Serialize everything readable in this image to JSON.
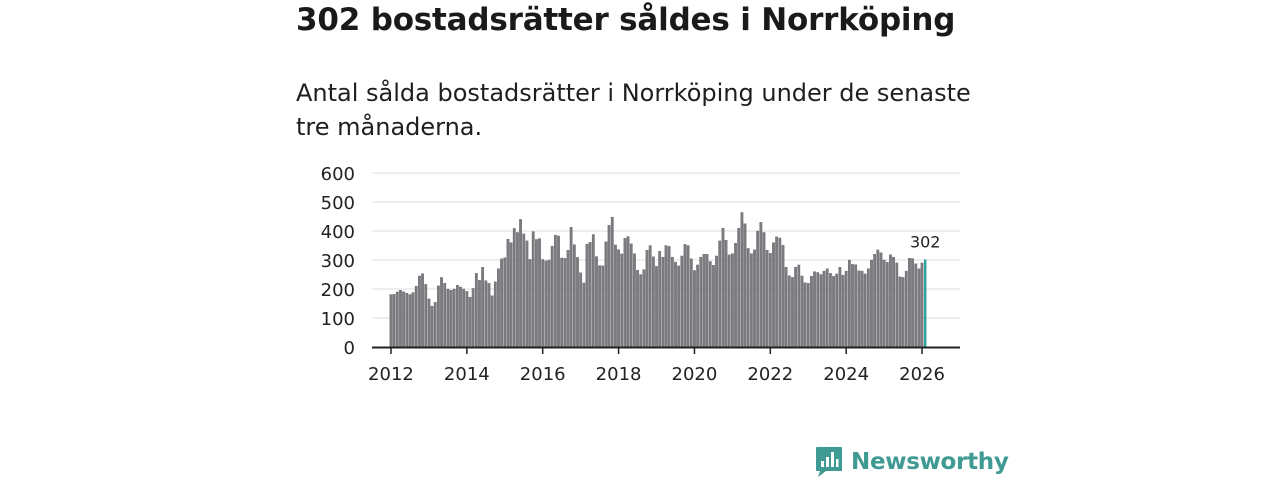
{
  "header": {
    "title": "302 bostadsrätter såldes i Norrköping",
    "subtitle": "Antal sålda bostadsrätter i Norrköping under de senaste tre månaderna."
  },
  "colors": {
    "bar": "#7b7b80",
    "bar_stroke": "#5b5b60",
    "highlight": "#27a39c",
    "grid": "#dddddd",
    "axis": "#222222",
    "brand": "#3e9a92"
  },
  "brand": {
    "name": "Newsworthy",
    "icon": "bar-chart-logo-icon"
  },
  "chart_data": {
    "type": "bar",
    "title": "302 bostadsrätter såldes i Norrköping",
    "xlabel": "",
    "ylabel": "",
    "ylim": [
      0,
      600
    ],
    "yticks": [
      "0",
      "100",
      "200",
      "300",
      "400",
      "500",
      "600"
    ],
    "xticks": [
      "2012",
      "2014",
      "2016",
      "2018",
      "2020",
      "2022",
      "2024",
      "2026"
    ],
    "x_start": "2012-01",
    "x_range_years": [
      2011.5,
      2027.0
    ],
    "grid": true,
    "highlight": {
      "label": "302",
      "value": 302,
      "index": -1
    },
    "values": [
      181,
      182,
      190,
      196,
      191,
      186,
      181,
      188,
      210,
      245,
      253,
      216,
      166,
      141,
      154,
      211,
      240,
      220,
      200,
      196,
      200,
      213,
      207,
      200,
      192,
      172,
      202,
      254,
      230,
      275,
      229,
      220,
      177,
      225,
      270,
      304,
      308,
      372,
      360,
      409,
      395,
      440,
      390,
      366,
      302,
      398,
      371,
      374,
      302,
      297,
      300,
      348,
      386,
      383,
      307,
      306,
      334,
      413,
      353,
      309,
      256,
      221,
      355,
      361,
      388,
      312,
      281,
      280,
      363,
      420,
      448,
      352,
      336,
      321,
      375,
      381,
      356,
      322,
      265,
      250,
      267,
      334,
      350,
      311,
      278,
      330,
      310,
      350,
      347,
      310,
      293,
      280,
      314,
      354,
      350,
      304,
      264,
      283,
      310,
      320,
      320,
      295,
      282,
      314,
      366,
      410,
      368,
      318,
      322,
      358,
      410,
      464,
      425,
      340,
      322,
      335,
      400,
      430,
      395,
      334,
      323,
      360,
      380,
      376,
      351,
      275,
      246,
      240,
      275,
      283,
      245,
      222,
      220,
      244,
      260,
      257,
      250,
      262,
      270,
      254,
      244,
      252,
      275,
      248,
      262,
      300,
      285,
      284,
      263,
      262,
      252,
      270,
      300,
      320,
      335,
      325,
      300,
      292,
      318,
      310,
      290,
      242,
      240,
      262,
      306,
      305,
      287,
      270,
      290,
      302
    ]
  }
}
